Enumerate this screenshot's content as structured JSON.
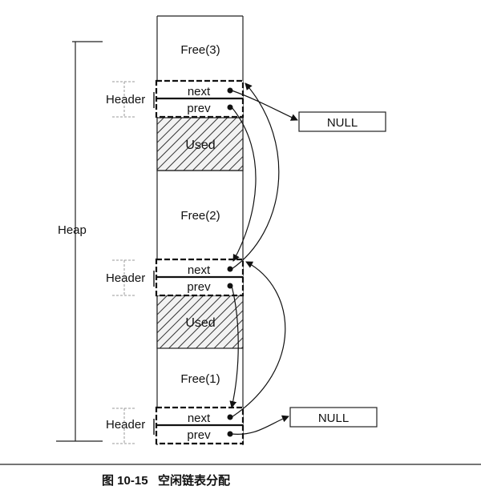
{
  "heap_label": "Heap",
  "header_label": "Header",
  "next_label": "next",
  "prev_label": "prev",
  "used_label": "Used",
  "free_blocks": [
    "Free(3)",
    "Free(2)",
    "Free(1)"
  ],
  "null_label": "NULL",
  "caption": "图 10-15   空闲链表分配"
}
